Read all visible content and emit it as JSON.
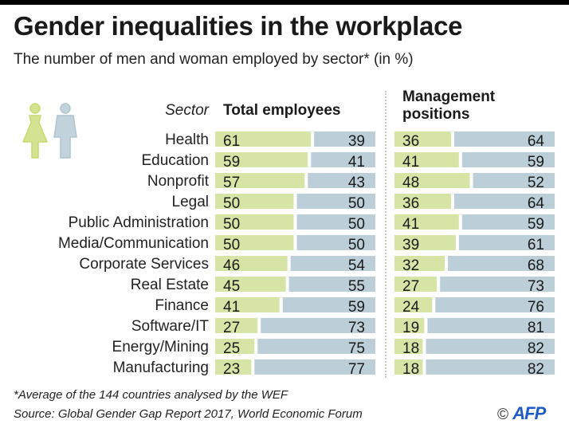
{
  "header": {
    "title": "Gender inequalities in the workplace",
    "subtitle": "The number of men and woman employed by sector* (in %)"
  },
  "colors": {
    "women": "#d6e4a6",
    "men": "#bccfd8",
    "women_icon": "#c5da6e",
    "men_icon": "#aec4cf",
    "afp_blue": "#1f5bc4"
  },
  "icons": [
    "woman-icon",
    "man-icon"
  ],
  "chart_data": {
    "type": "bar",
    "title": "Gender inequalities in the workplace",
    "subtitle": "The number of men and woman employed by sector* (in %)",
    "category_header": "Sector",
    "categories": [
      "Health",
      "Education",
      "Nonprofit",
      "Legal",
      "Public Administration",
      "Media/Communication",
      "Corporate Services",
      "Real Estate",
      "Finance",
      "Software/IT",
      "Energy/Mining",
      "Manufacturing"
    ],
    "panels": [
      {
        "title": "Total employees",
        "series": [
          {
            "name": "Women",
            "values": [
              61,
              59,
              57,
              50,
              50,
              50,
              46,
              45,
              41,
              27,
              25,
              23
            ]
          },
          {
            "name": "Men",
            "values": [
              39,
              41,
              43,
              50,
              50,
              50,
              54,
              55,
              59,
              73,
              75,
              77
            ]
          }
        ]
      },
      {
        "title": "Management positions",
        "title_lines": [
          "Management",
          "positions"
        ],
        "series": [
          {
            "name": "Women",
            "values": [
              36,
              41,
              48,
              36,
              41,
              39,
              32,
              27,
              24,
              19,
              18,
              18
            ]
          },
          {
            "name": "Men",
            "values": [
              64,
              59,
              52,
              64,
              59,
              61,
              68,
              73,
              76,
              81,
              82,
              82
            ]
          }
        ]
      }
    ],
    "stacked": true,
    "xlim": [
      0,
      100
    ],
    "unit": "%",
    "legend": "icons top-left (woman = green, man = blue-grey)",
    "grid": false
  },
  "footer": {
    "note": "*Average of the 144 countries analysed by the WEF",
    "source": "Source: Global Gender Gap Report 2017, World Economic Forum",
    "copyright": "©",
    "agency": "AFP"
  }
}
